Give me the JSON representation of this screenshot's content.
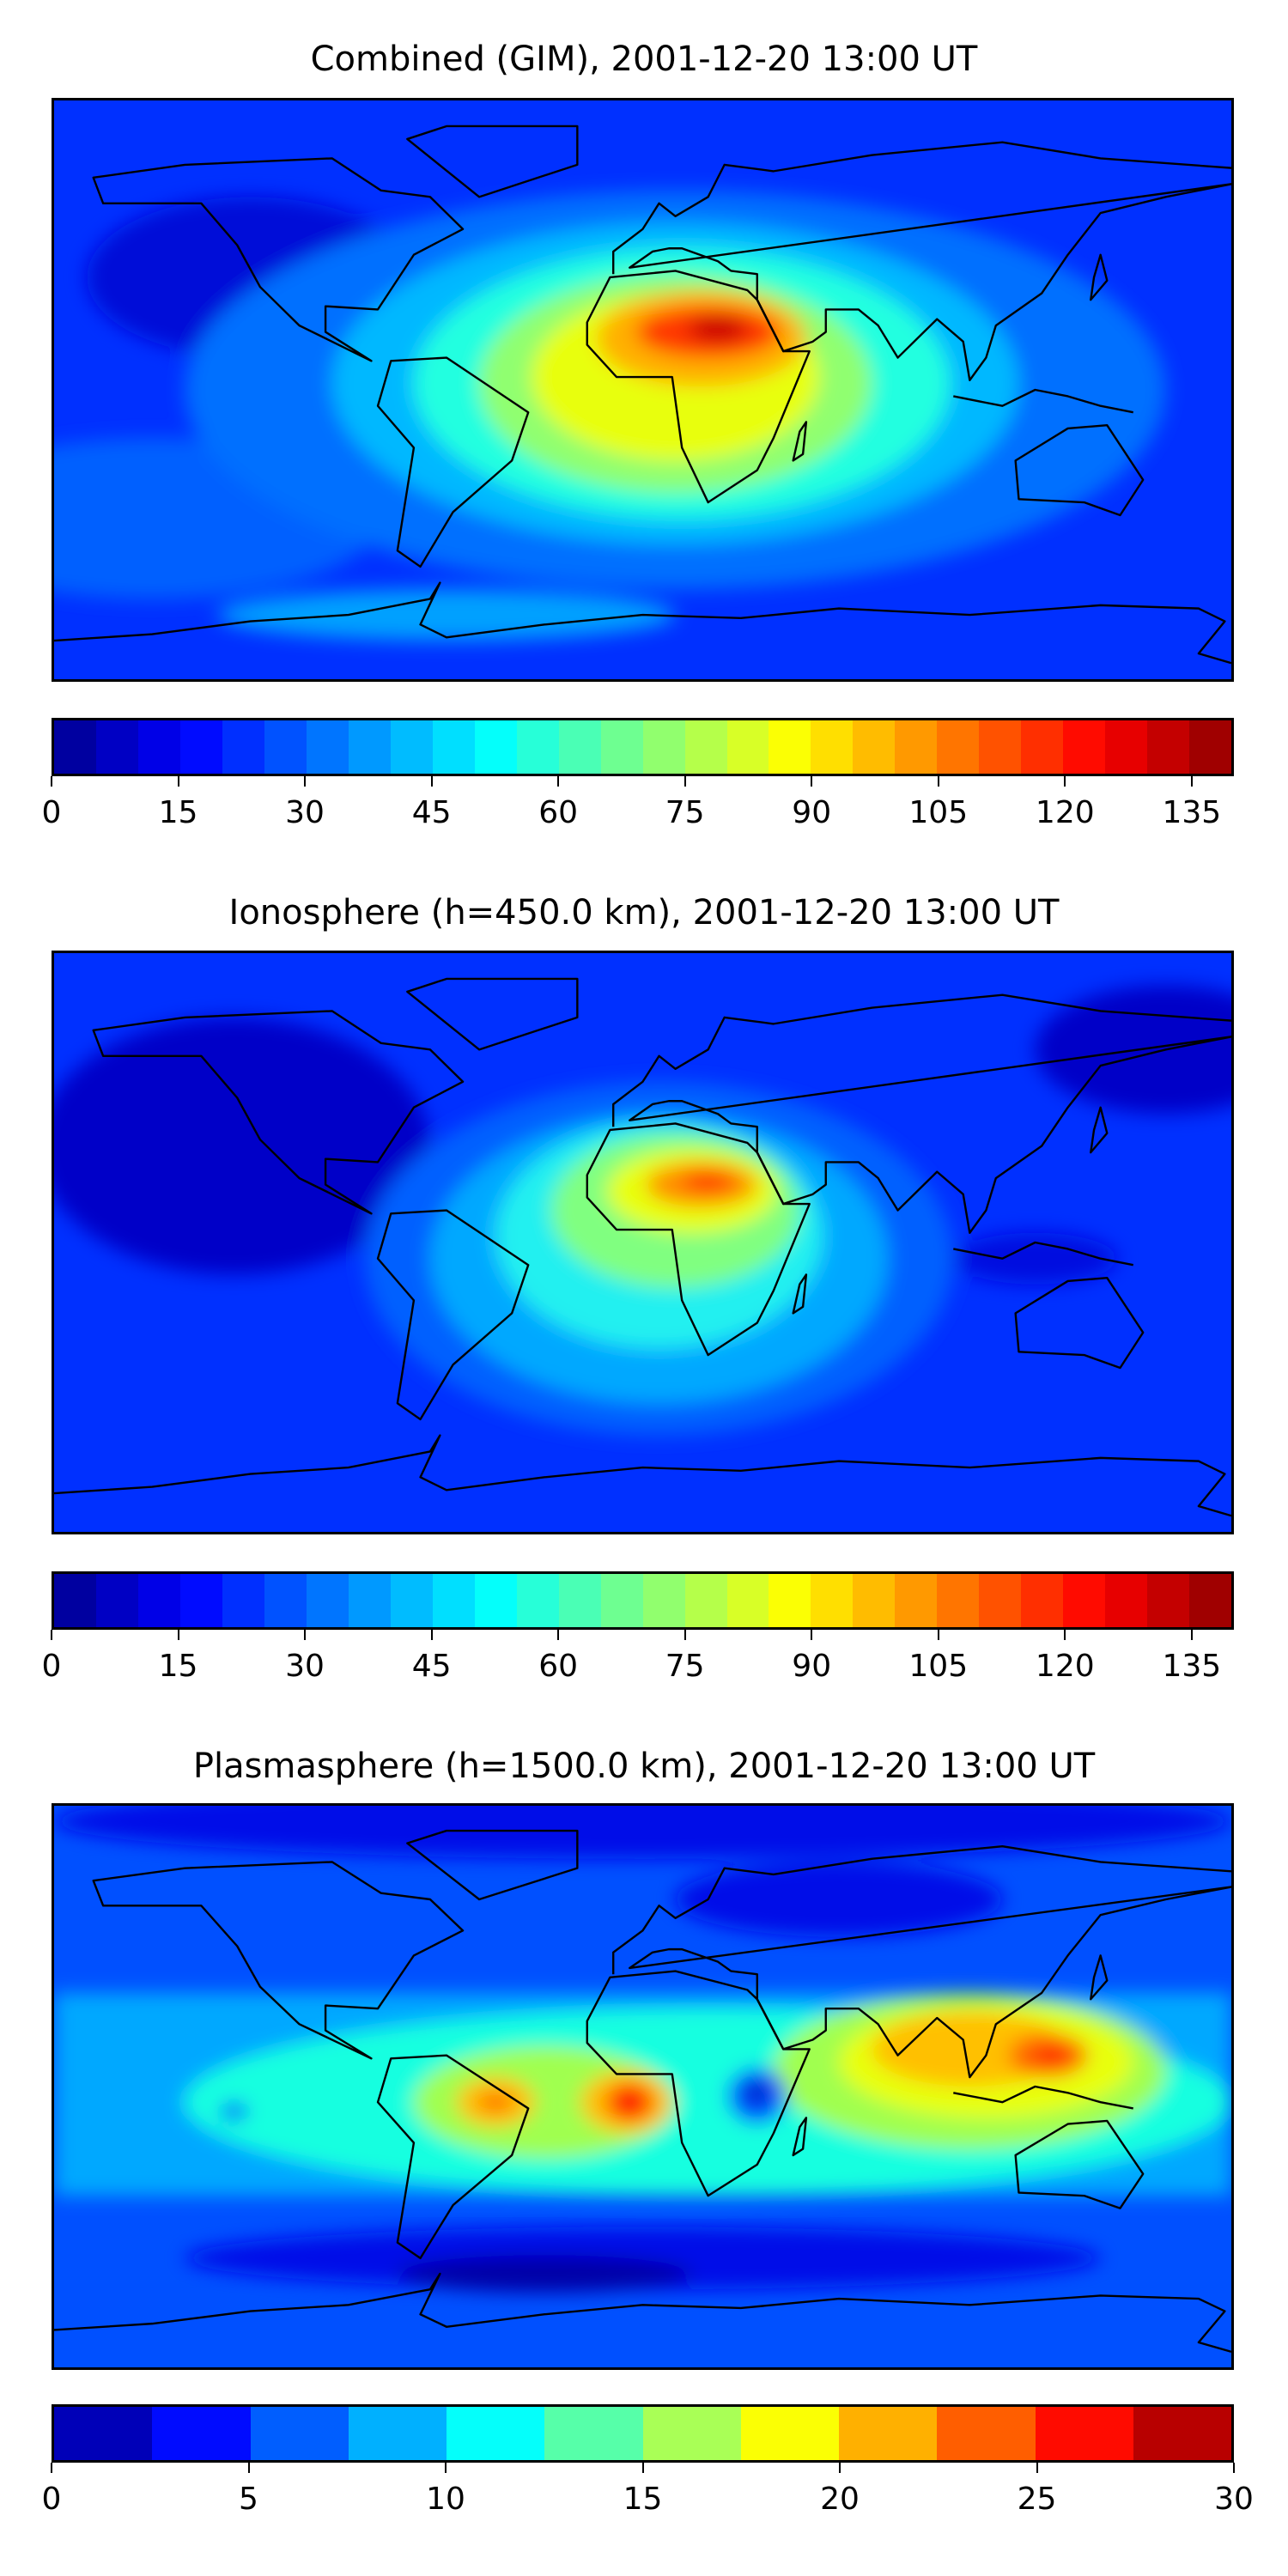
{
  "panels": [
    {
      "title": "Combined (GIM), 2001-12-20 13:00 UT"
    },
    {
      "title": "Ionosphere  (h=450.0 km), 2001-12-20 13:00 UT"
    },
    {
      "title": "Plasmasphere (h=1500.0 km), 2001-12-20 13:00 UT"
    }
  ],
  "chart_data": [
    {
      "type": "heatmap",
      "title": "Combined (GIM), 2001-12-20 13:00 UT",
      "colormap": "jet",
      "colorbar": {
        "range": [
          0,
          140
        ],
        "levels": 28,
        "ticks": [
          "0",
          "15",
          "30",
          "45",
          "60",
          "75",
          "90",
          "105",
          "120",
          "135"
        ],
        "tick_values": [
          0,
          15,
          30,
          45,
          60,
          75,
          90,
          105,
          120,
          135
        ]
      },
      "peak_region": "North Africa / Arabia",
      "peak_approx": 135
    },
    {
      "type": "heatmap",
      "title": "Ionosphere  (h=450.0 km), 2001-12-20 13:00 UT",
      "colormap": "jet",
      "colorbar": {
        "range": [
          0,
          140
        ],
        "levels": 28,
        "ticks": [
          "0",
          "15",
          "30",
          "45",
          "60",
          "75",
          "90",
          "105",
          "120",
          "135"
        ],
        "tick_values": [
          0,
          15,
          30,
          45,
          60,
          75,
          90,
          105,
          120,
          135
        ]
      },
      "peak_region": "North Africa",
      "peak_approx": 125
    },
    {
      "type": "heatmap",
      "title": "Plasmasphere (h=1500.0 km), 2001-12-20 13:00 UT",
      "colormap": "jet",
      "colorbar": {
        "range": [
          0,
          30
        ],
        "levels": 12,
        "ticks": [
          "0",
          "5",
          "10",
          "15",
          "20",
          "25",
          "30"
        ],
        "tick_values": [
          0,
          5,
          10,
          15,
          20,
          25,
          30
        ]
      },
      "peak_region": "West Africa / Philippines",
      "peak_approx": 27
    }
  ]
}
